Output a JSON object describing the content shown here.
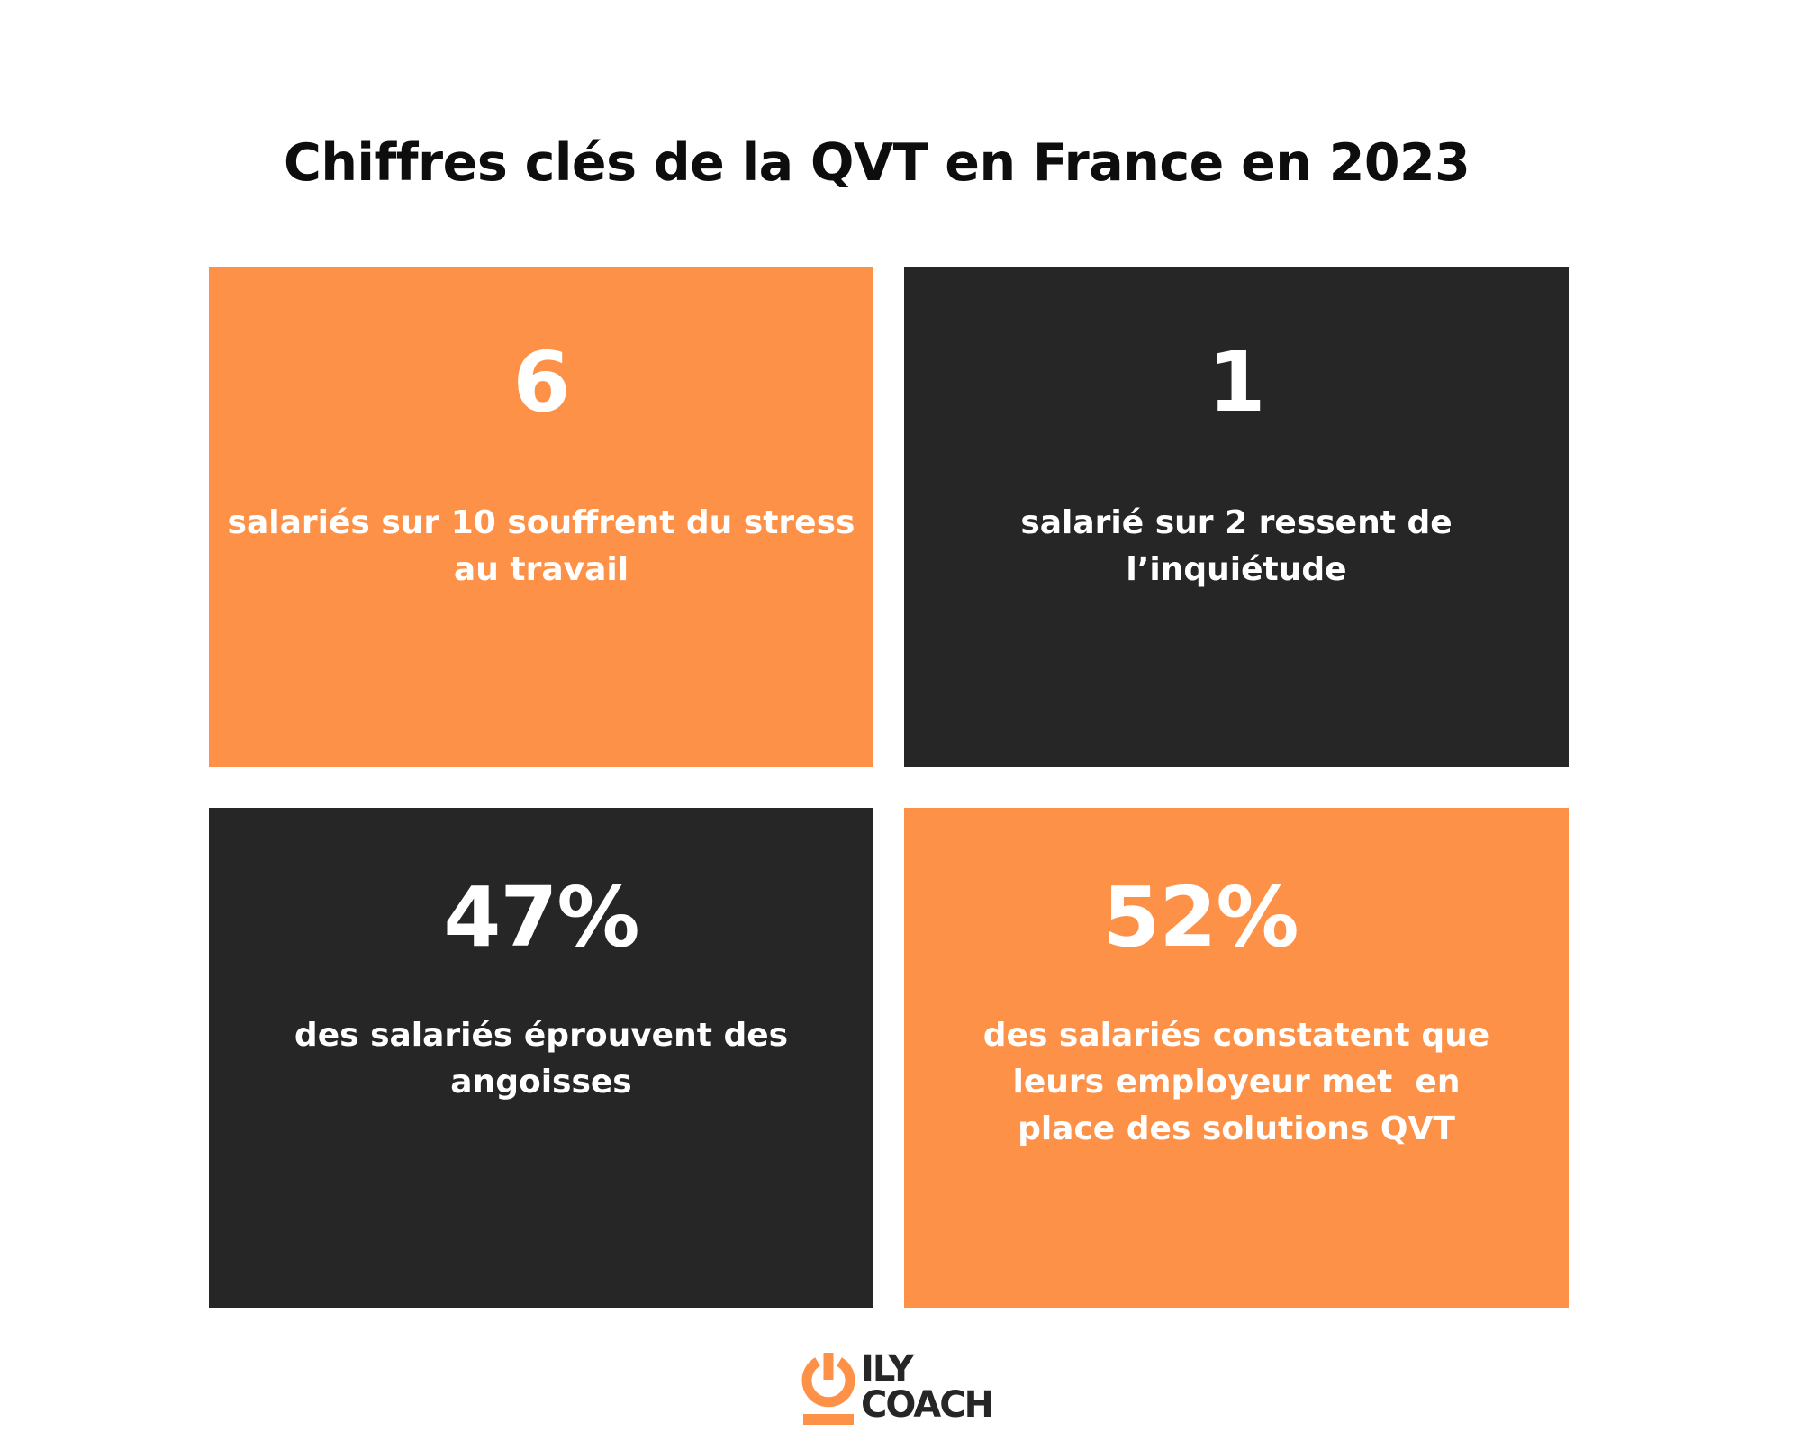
{
  "title": "Chiffres clés de la QVT en France en 2023",
  "colors": {
    "orange": "#fd9148",
    "dark": "#262626",
    "text_on_card": "#ffffff"
  },
  "cards": [
    {
      "style": "orange",
      "value": "6",
      "description_lines": [
        "salariés sur 10 souffrent du stress",
        "au travail"
      ]
    },
    {
      "style": "dark",
      "value": "1",
      "description_lines": [
        "salarié sur 2 ressent de",
        "l’inquiétude"
      ]
    },
    {
      "style": "dark",
      "value": "47%",
      "description_lines": [
        "des salariés éprouvent des",
        "angoisses"
      ]
    },
    {
      "style": "orange",
      "value": "52%",
      "description_lines": [
        "des salariés constatent que",
        "leurs employeur met  en",
        "place des solutions QVT"
      ]
    }
  ],
  "logo": {
    "line1": "ILY",
    "line2": "COACH",
    "icon": "power-icon"
  }
}
